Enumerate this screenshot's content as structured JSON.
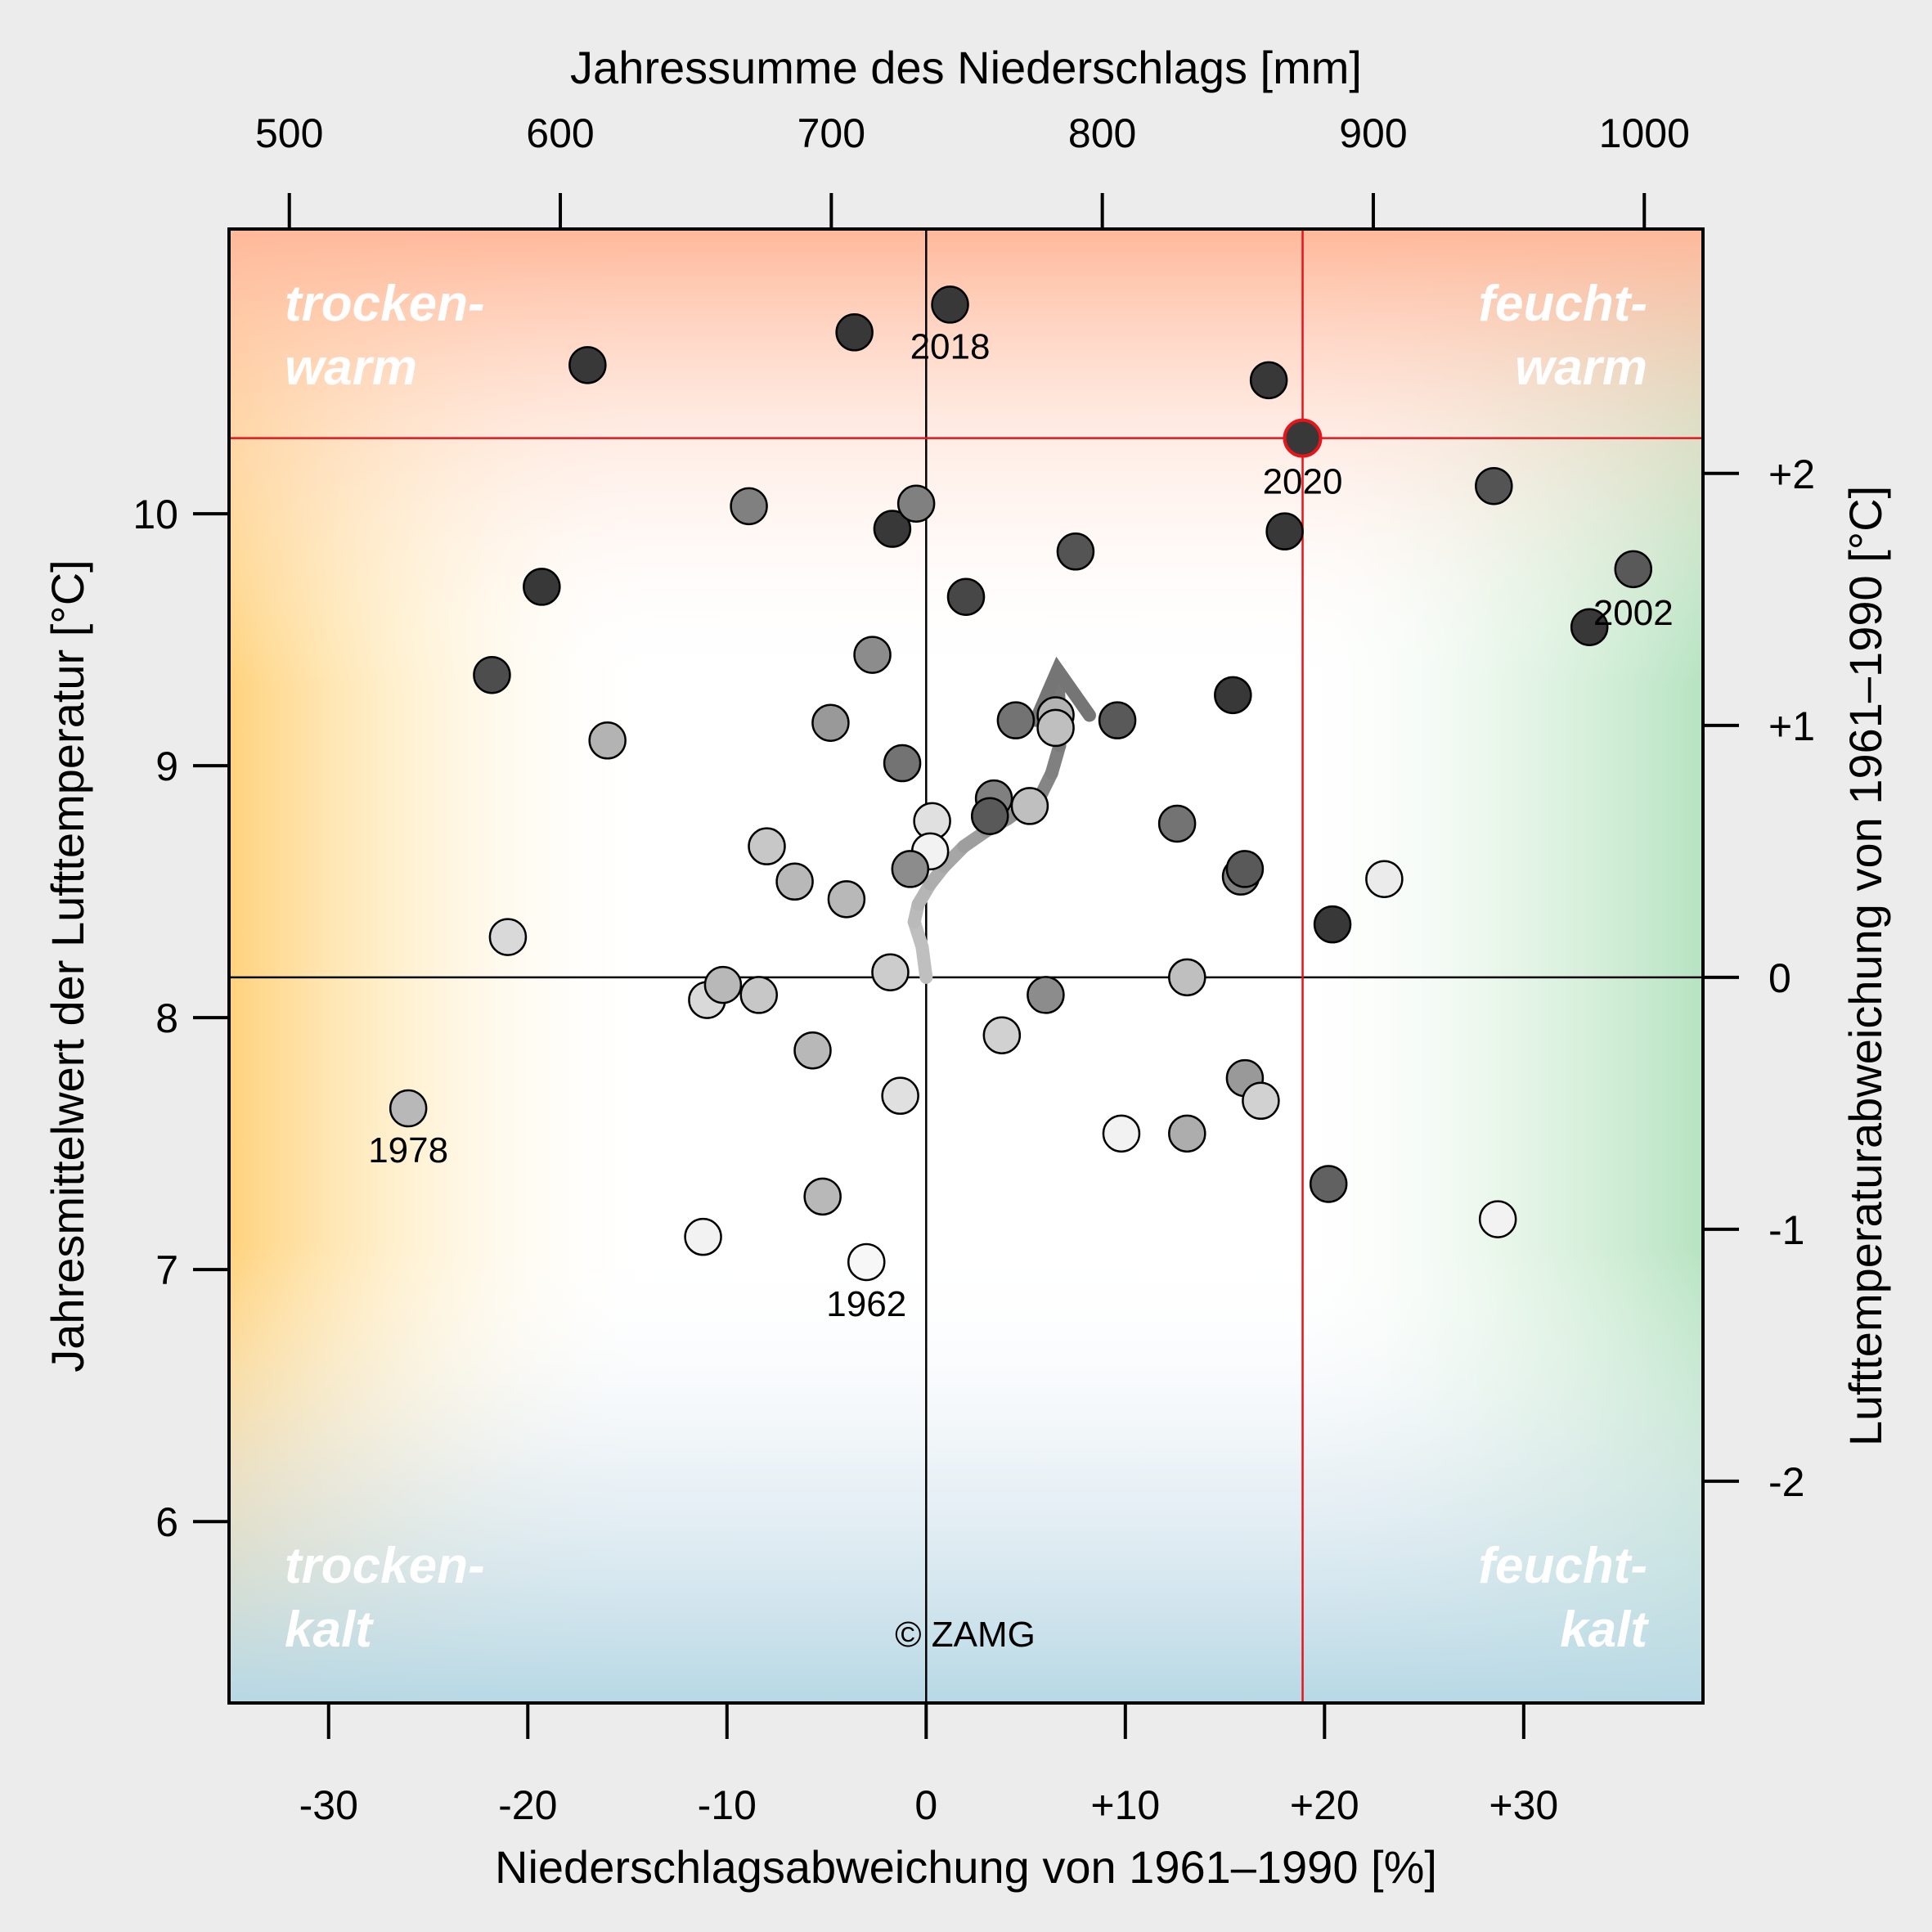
{
  "chart_data": {
    "type": "scatter",
    "title": "",
    "xlabel_bottom": "Niederschlagsabweichung von 1961–1990 [%]",
    "xlabel_top": "Jahressumme des Niederschlags [mm]",
    "ylabel_left": "Jahresmittelwert der Lufttemperatur [°C]",
    "ylabel_right": "Lufttemperaturabweichung von 1961–1990 [°C]",
    "xlim": [
      -35,
      39
    ],
    "ylim": [
      5.28,
      11.13
    ],
    "reference": {
      "x_percent": 0,
      "y_temp": 8.16,
      "precip_mm": 735
    },
    "x_ticks_bottom": [
      {
        "v": -30,
        "label": "-30"
      },
      {
        "v": -20,
        "label": "-20"
      },
      {
        "v": -10,
        "label": "-10"
      },
      {
        "v": 0,
        "label": "0"
      },
      {
        "v": 10,
        "label": "+10"
      },
      {
        "v": 20,
        "label": "+20"
      },
      {
        "v": 30,
        "label": "+30"
      }
    ],
    "x_ticks_top": [
      {
        "v": 500,
        "label": "500"
      },
      {
        "v": 600,
        "label": "600"
      },
      {
        "v": 700,
        "label": "700"
      },
      {
        "v": 800,
        "label": "800"
      },
      {
        "v": 900,
        "label": "900"
      },
      {
        "v": 1000,
        "label": "1000"
      }
    ],
    "y_ticks_left": [
      {
        "v": 6,
        "label": "6"
      },
      {
        "v": 7,
        "label": "7"
      },
      {
        "v": 8,
        "label": "8"
      },
      {
        "v": 9,
        "label": "9"
      },
      {
        "v": 10,
        "label": "10"
      }
    ],
    "y_ticks_right": [
      {
        "v": -2,
        "label": "-2"
      },
      {
        "v": -1,
        "label": "-1"
      },
      {
        "v": 0,
        "label": "0"
      },
      {
        "v": 1,
        "label": "+1"
      },
      {
        "v": 2,
        "label": "+2"
      }
    ],
    "highlight": {
      "x": 18.9,
      "y": 10.3,
      "label": "2020",
      "color": "#e8141c"
    },
    "quadrant_labels": {
      "top_left": [
        "trocken-",
        "warm"
      ],
      "top_right": [
        "feucht-",
        "warm"
      ],
      "bottom_left": [
        "trocken-",
        "kalt"
      ],
      "bottom_right": [
        "feucht-",
        "kalt"
      ]
    },
    "copyright": "© ZAMG",
    "points": [
      {
        "x": -26.0,
        "y": 7.64,
        "shade": 0.72,
        "label": "1978"
      },
      {
        "x": -3.0,
        "y": 7.03,
        "shade": 0.97,
        "label": "1962"
      },
      {
        "x": 1.2,
        "y": 10.83,
        "shade": 0.22,
        "label": "2018"
      },
      {
        "x": 35.5,
        "y": 9.78,
        "shade": 0.35,
        "label": "2002"
      },
      {
        "x": -17.0,
        "y": 10.59,
        "shade": 0.22
      },
      {
        "x": -3.6,
        "y": 10.72,
        "shade": 0.22
      },
      {
        "x": 17.2,
        "y": 10.53,
        "shade": 0.22
      },
      {
        "x": 28.5,
        "y": 10.11,
        "shade": 0.33
      },
      {
        "x": 18.0,
        "y": 9.93,
        "shade": 0.22
      },
      {
        "x": -1.7,
        "y": 9.94,
        "shade": 0.22
      },
      {
        "x": -8.9,
        "y": 10.03,
        "shade": 0.5
      },
      {
        "x": -0.5,
        "y": 10.04,
        "shade": 0.5
      },
      {
        "x": 7.5,
        "y": 9.85,
        "shade": 0.33
      },
      {
        "x": 2.0,
        "y": 9.67,
        "shade": 0.28
      },
      {
        "x": -19.3,
        "y": 9.71,
        "shade": 0.22
      },
      {
        "x": 33.3,
        "y": 9.55,
        "shade": 0.22
      },
      {
        "x": -21.8,
        "y": 9.36,
        "shade": 0.3
      },
      {
        "x": -2.7,
        "y": 9.44,
        "shade": 0.55
      },
      {
        "x": 15.4,
        "y": 9.28,
        "shade": 0.22
      },
      {
        "x": -4.8,
        "y": 9.17,
        "shade": 0.6
      },
      {
        "x": 4.5,
        "y": 9.18,
        "shade": 0.45
      },
      {
        "x": 9.6,
        "y": 9.18,
        "shade": 0.35
      },
      {
        "x": 6.5,
        "y": 9.2,
        "shade": 0.7
      },
      {
        "x": 6.5,
        "y": 9.15,
        "shade": 0.75
      },
      {
        "x": -16.0,
        "y": 9.1,
        "shade": 0.7
      },
      {
        "x": -1.2,
        "y": 9.01,
        "shade": 0.45
      },
      {
        "x": 3.4,
        "y": 8.87,
        "shade": 0.5
      },
      {
        "x": 5.2,
        "y": 8.84,
        "shade": 0.75
      },
      {
        "x": 3.2,
        "y": 8.8,
        "shade": 0.35
      },
      {
        "x": 12.6,
        "y": 8.77,
        "shade": 0.45
      },
      {
        "x": 0.3,
        "y": 8.78,
        "shade": 0.88
      },
      {
        "x": 0.2,
        "y": 8.66,
        "shade": 0.95
      },
      {
        "x": -8.0,
        "y": 8.68,
        "shade": 0.78
      },
      {
        "x": -0.8,
        "y": 8.59,
        "shade": 0.55
      },
      {
        "x": -6.6,
        "y": 8.54,
        "shade": 0.72
      },
      {
        "x": -4.0,
        "y": 8.47,
        "shade": 0.72
      },
      {
        "x": 15.8,
        "y": 8.56,
        "shade": 0.5
      },
      {
        "x": 16.0,
        "y": 8.59,
        "shade": 0.35
      },
      {
        "x": 23.0,
        "y": 8.55,
        "shade": 0.92
      },
      {
        "x": 20.4,
        "y": 8.37,
        "shade": 0.22
      },
      {
        "x": -21.0,
        "y": 8.32,
        "shade": 0.85
      },
      {
        "x": -1.8,
        "y": 8.18,
        "shade": 0.8
      },
      {
        "x": 13.1,
        "y": 8.16,
        "shade": 0.75
      },
      {
        "x": -11.0,
        "y": 8.07,
        "shade": 0.85
      },
      {
        "x": -10.2,
        "y": 8.13,
        "shade": 0.72
      },
      {
        "x": -8.4,
        "y": 8.09,
        "shade": 0.78
      },
      {
        "x": 6.0,
        "y": 8.09,
        "shade": 0.55
      },
      {
        "x": 3.8,
        "y": 7.93,
        "shade": 0.82
      },
      {
        "x": -5.7,
        "y": 7.87,
        "shade": 0.72
      },
      {
        "x": 16.0,
        "y": 7.76,
        "shade": 0.6
      },
      {
        "x": 16.8,
        "y": 7.67,
        "shade": 0.82
      },
      {
        "x": -1.3,
        "y": 7.69,
        "shade": 0.88
      },
      {
        "x": 9.8,
        "y": 7.54,
        "shade": 0.95
      },
      {
        "x": 13.1,
        "y": 7.54,
        "shade": 0.68
      },
      {
        "x": 20.2,
        "y": 7.34,
        "shade": 0.38
      },
      {
        "x": -5.2,
        "y": 7.29,
        "shade": 0.72
      },
      {
        "x": 28.7,
        "y": 7.2,
        "shade": 0.95
      },
      {
        "x": -11.2,
        "y": 7.13,
        "shade": 0.95
      }
    ],
    "trend_path": [
      {
        "x": 0.0,
        "y": 8.16,
        "shade": 0.75
      },
      {
        "x": -0.2,
        "y": 8.28,
        "shade": 0.75
      },
      {
        "x": -0.6,
        "y": 8.38,
        "shade": 0.73
      },
      {
        "x": -0.4,
        "y": 8.45,
        "shade": 0.71
      },
      {
        "x": 0.2,
        "y": 8.53,
        "shade": 0.68
      },
      {
        "x": 0.9,
        "y": 8.6,
        "shade": 0.65
      },
      {
        "x": 1.9,
        "y": 8.68,
        "shade": 0.62
      },
      {
        "x": 3.0,
        "y": 8.74,
        "shade": 0.59
      },
      {
        "x": 4.1,
        "y": 8.79,
        "shade": 0.56
      },
      {
        "x": 5.0,
        "y": 8.84,
        "shade": 0.54
      },
      {
        "x": 5.8,
        "y": 8.89,
        "shade": 0.52
      },
      {
        "x": 6.3,
        "y": 8.97,
        "shade": 0.5
      },
      {
        "x": 6.7,
        "y": 9.08,
        "shade": 0.48
      },
      {
        "x": 6.7,
        "y": 9.2,
        "shade": 0.47
      },
      {
        "x": 6.6,
        "y": 9.38,
        "shade": 0.46
      }
    ],
    "trend_arrow_head": [
      {
        "x": 5.5,
        "y": 9.18
      },
      {
        "x": 6.6,
        "y": 9.38
      },
      {
        "x": 8.2,
        "y": 9.2
      }
    ]
  }
}
